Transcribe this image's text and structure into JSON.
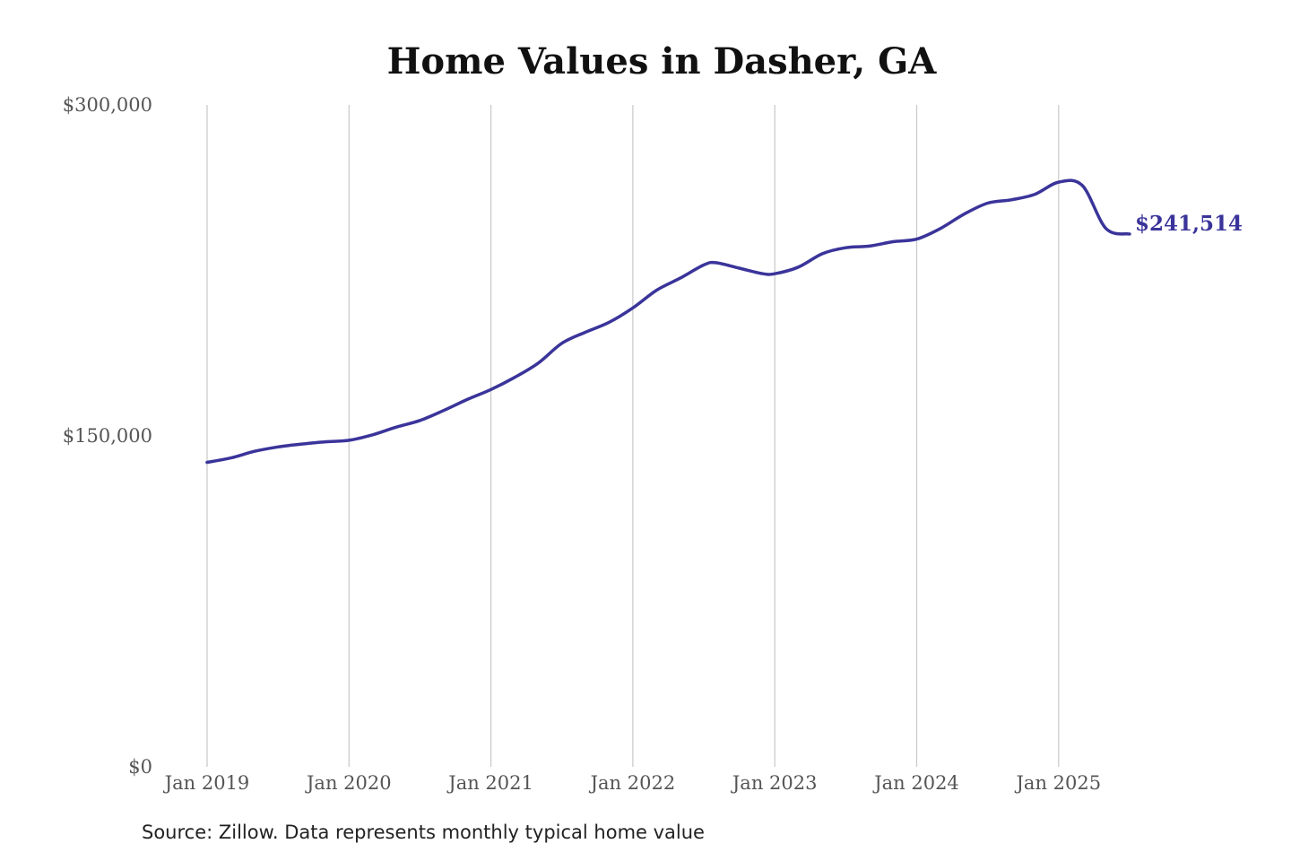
{
  "chart_data": {
    "type": "line",
    "title": "Home Values in Dasher, GA",
    "xlabel": "",
    "ylabel": "",
    "ylim": [
      0,
      300000
    ],
    "y_ticks": [
      {
        "value": 0,
        "label": "$0"
      },
      {
        "value": 150000,
        "label": "$150,000"
      },
      {
        "value": 300000,
        "label": "$300,000"
      }
    ],
    "x_ticks": [
      {
        "value": "2019-01",
        "label": "Jan 2019"
      },
      {
        "value": "2020-01",
        "label": "Jan 2020"
      },
      {
        "value": "2021-01",
        "label": "Jan 2021"
      },
      {
        "value": "2022-01",
        "label": "Jan 2022"
      },
      {
        "value": "2023-01",
        "label": "Jan 2023"
      },
      {
        "value": "2024-01",
        "label": "Jan 2024"
      },
      {
        "value": "2025-01",
        "label": "Jan 2025"
      }
    ],
    "grid": {
      "vertical": true,
      "horizontal": false
    },
    "legend": "none",
    "end_label": "$241,514",
    "color": "#3a349a",
    "series": [
      {
        "x": [
          "2019-01",
          "2019-03",
          "2019-05",
          "2019-07",
          "2019-09",
          "2019-11",
          "2020-01",
          "2020-03",
          "2020-05",
          "2020-07",
          "2020-09",
          "2020-11",
          "2021-01",
          "2021-03",
          "2021-05",
          "2021-07",
          "2021-09",
          "2021-11",
          "2022-01",
          "2022-03",
          "2022-05",
          "2022-07",
          "2022-08",
          "2022-10",
          "2022-12",
          "2023-01",
          "2023-03",
          "2023-05",
          "2023-07",
          "2023-09",
          "2023-11",
          "2024-01",
          "2024-03",
          "2024-05",
          "2024-07",
          "2024-09",
          "2024-11",
          "2025-01",
          "2025-03",
          "2025-05",
          "2025-07"
        ],
        "y": [
          138000,
          140000,
          143000,
          145000,
          146300,
          147300,
          148000,
          150500,
          154000,
          157000,
          161500,
          166500,
          171000,
          176500,
          183000,
          192000,
          197000,
          201500,
          208000,
          216000,
          221500,
          227500,
          228500,
          226000,
          223500,
          223500,
          226500,
          232500,
          235300,
          236000,
          238000,
          239200,
          244000,
          250500,
          255500,
          257000,
          259500,
          265000,
          263500,
          244000,
          241514
        ]
      }
    ]
  },
  "source_note": "Source: Zillow. Data represents monthly typical home value"
}
